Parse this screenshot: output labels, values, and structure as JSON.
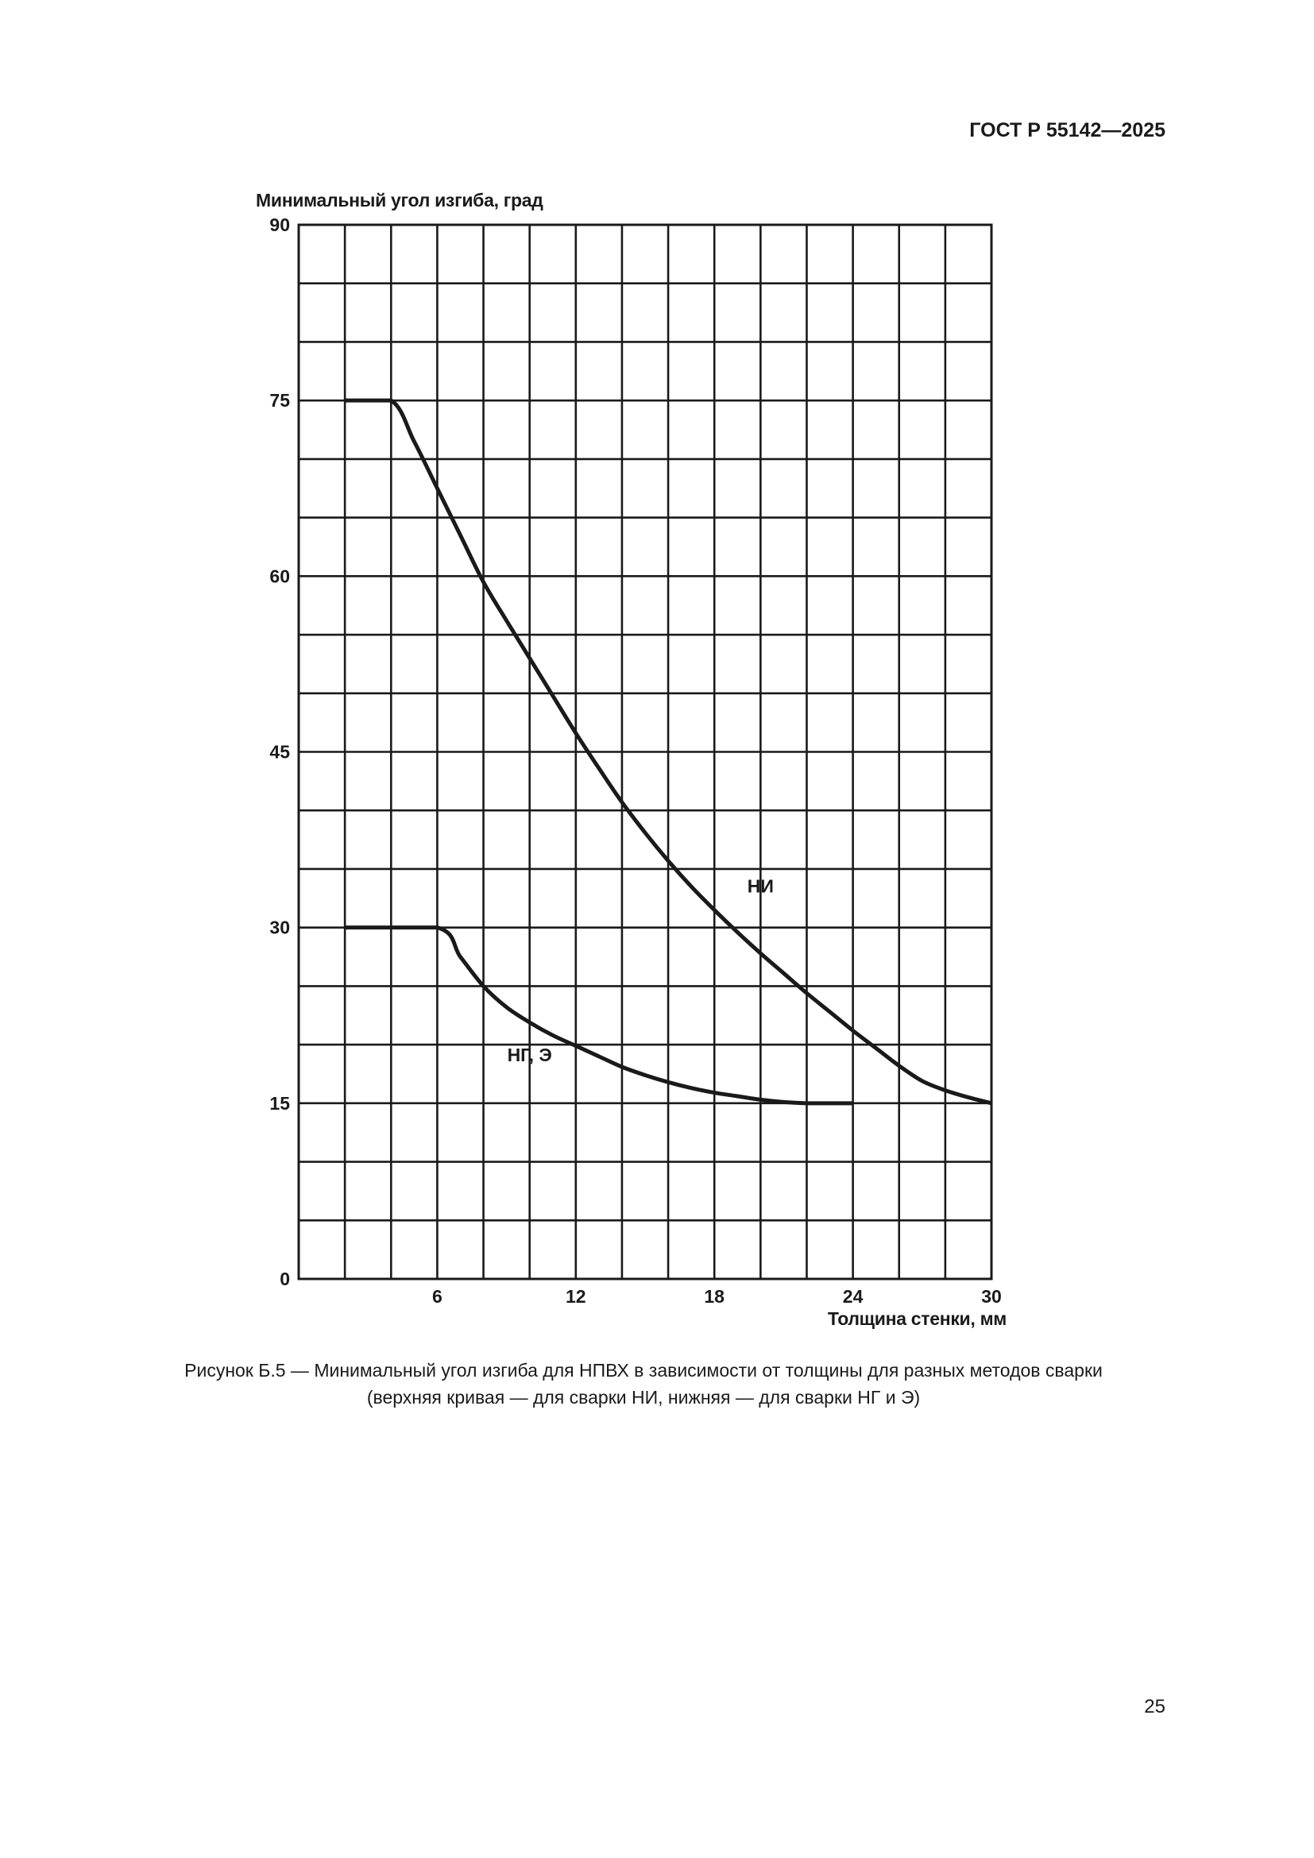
{
  "header": {
    "standard": "ГОСТ Р 55142—2025"
  },
  "chart_data": {
    "type": "line",
    "title": "",
    "ylabel": "Минимальный угол изгиба, град",
    "xlabel": "Толщина стенки, мм",
    "xlim": [
      0,
      30
    ],
    "ylim": [
      0,
      90
    ],
    "x_tick_labels": [
      "6",
      "12",
      "18",
      "24",
      "30"
    ],
    "y_tick_labels": [
      "0",
      "15",
      "30",
      "45",
      "60",
      "75",
      "90"
    ],
    "grid": true,
    "series": [
      {
        "name": "НИ",
        "x": [
          2,
          4,
          5,
          6,
          7,
          8,
          9,
          10,
          11,
          12,
          13,
          14,
          15,
          16,
          17,
          18,
          19,
          20,
          21,
          22,
          23,
          24,
          25,
          26,
          27,
          28,
          29,
          30
        ],
        "y": [
          75,
          75,
          71.5,
          67.5,
          63.5,
          59.5,
          56.2,
          53,
          49.8,
          46.6,
          43.6,
          40.7,
          38.1,
          35.7,
          33.5,
          31.5,
          29.6,
          27.8,
          26.1,
          24.4,
          22.8,
          21.2,
          19.7,
          18.2,
          16.9,
          16.1,
          15.5,
          15
        ]
      },
      {
        "name": "НГ, Э",
        "x": [
          2,
          6,
          7,
          8,
          9,
          10,
          11,
          12,
          13,
          14,
          15,
          16,
          17,
          18,
          19,
          20,
          21,
          22,
          23,
          24
        ],
        "y": [
          30,
          30,
          27.5,
          25,
          23.2,
          21.9,
          20.8,
          19.9,
          19,
          18.1,
          17.4,
          16.8,
          16.3,
          15.9,
          15.6,
          15.3,
          15.1,
          15,
          15,
          15
        ]
      }
    ]
  },
  "caption": {
    "line1": "Рисунок Б.5 — Минимальный угол изгиба для НПВХ в зависимости от толщины для разных методов сварки",
    "line2": "(верхняя кривая — для сварки НИ, нижняя — для сварки НГ и Э)"
  },
  "page_number": "25"
}
